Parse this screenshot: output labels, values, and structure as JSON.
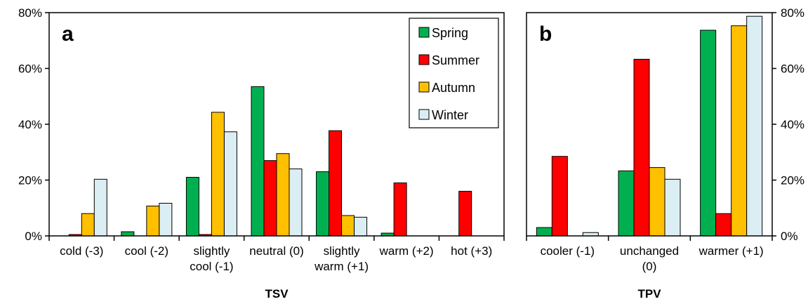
{
  "chart_data": [
    {
      "type": "bar",
      "panel": "a",
      "xlabel": "TSV",
      "yaxis": "left",
      "legend": "top-right",
      "categories": [
        [
          "cold (-3)"
        ],
        [
          "cool (-2)"
        ],
        [
          "slightly",
          "cool (-1)"
        ],
        [
          "neutral (0)"
        ],
        [
          "slightly",
          "warm (+1)"
        ],
        [
          "warm (+2)"
        ],
        [
          "hot (+3)"
        ]
      ],
      "series": [
        {
          "name": "Spring",
          "color": "#00b050",
          "values": [
            0,
            1.5,
            21,
            53.5,
            23,
            1,
            0
          ]
        },
        {
          "name": "Summer",
          "color": "#ff0000",
          "values": [
            0.5,
            0,
            0.5,
            27,
            37.7,
            19,
            16
          ]
        },
        {
          "name": "Autumn",
          "color": "#ffc000",
          "values": [
            8,
            10.7,
            44.3,
            29.5,
            7.3,
            0,
            0
          ]
        },
        {
          "name": "Winter",
          "color": "#dbeef4",
          "values": [
            20.3,
            11.7,
            37.3,
            24,
            6.7,
            0,
            0
          ]
        }
      ],
      "ylim": [
        0,
        80
      ],
      "yticks": [
        {
          "value": 0,
          "label": "0%"
        },
        {
          "value": 20,
          "label": "20%"
        },
        {
          "value": 40,
          "label": "40%"
        },
        {
          "value": 60,
          "label": "60%"
        },
        {
          "value": 80,
          "label": "80%"
        }
      ]
    },
    {
      "type": "bar",
      "panel": "b",
      "xlabel": "TPV",
      "yaxis": "right",
      "categories": [
        [
          "cooler (-1)"
        ],
        [
          "unchanged",
          "(0)"
        ],
        [
          "warmer (+1)"
        ]
      ],
      "series": [
        {
          "color": "#00b050",
          "values": [
            3,
            23.3,
            73.7
          ]
        },
        {
          "color": "#ff0000",
          "values": [
            28.5,
            63.3,
            8
          ]
        },
        {
          "color": "#ffc000",
          "values": [
            0,
            24.5,
            75.3
          ]
        },
        {
          "color": "#dbeef4",
          "values": [
            1.2,
            20.3,
            78.7
          ]
        }
      ],
      "ylim": [
        0,
        80
      ],
      "yticks": [
        {
          "value": 0,
          "label": "0%"
        },
        {
          "value": 20,
          "label": "20%"
        },
        {
          "value": 40,
          "label": "40%"
        },
        {
          "value": 60,
          "label": "60%"
        },
        {
          "value": 80,
          "label": "80%"
        }
      ]
    }
  ]
}
